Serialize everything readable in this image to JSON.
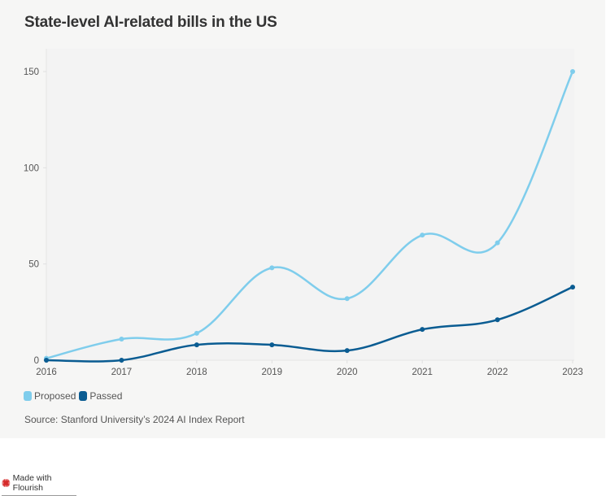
{
  "title": "State-level AI-related bills in the US",
  "source": "Source: Stanford University’s 2024 AI Index Report",
  "branding": {
    "label": "Made with Flourish",
    "icon": "flourish-logo-icon"
  },
  "colors": {
    "proposed": "#7fcdec",
    "passed": "#0a5c92",
    "background": "#f6f6f5",
    "plot_background": "#f3f3f3"
  },
  "legend": [
    {
      "label": "Proposed",
      "key": "proposed"
    },
    {
      "label": "Passed",
      "key": "passed"
    }
  ],
  "chart_data": {
    "type": "line",
    "title": "State-level AI-related bills in the US",
    "xlabel": "",
    "ylabel": "",
    "x": [
      "2016",
      "2017",
      "2018",
      "2019",
      "2020",
      "2021",
      "2022",
      "2023"
    ],
    "series": [
      {
        "name": "Proposed",
        "values": [
          1,
          11,
          14,
          48,
          32,
          65,
          61,
          150
        ]
      },
      {
        "name": "Passed",
        "values": [
          0,
          0,
          8,
          8,
          5,
          16,
          21,
          38
        ]
      }
    ],
    "yticks": [
      0,
      50,
      100,
      150
    ],
    "ylim": [
      0,
      160
    ],
    "grid": false,
    "legend_position": "bottom-left",
    "curve": "smooth"
  }
}
